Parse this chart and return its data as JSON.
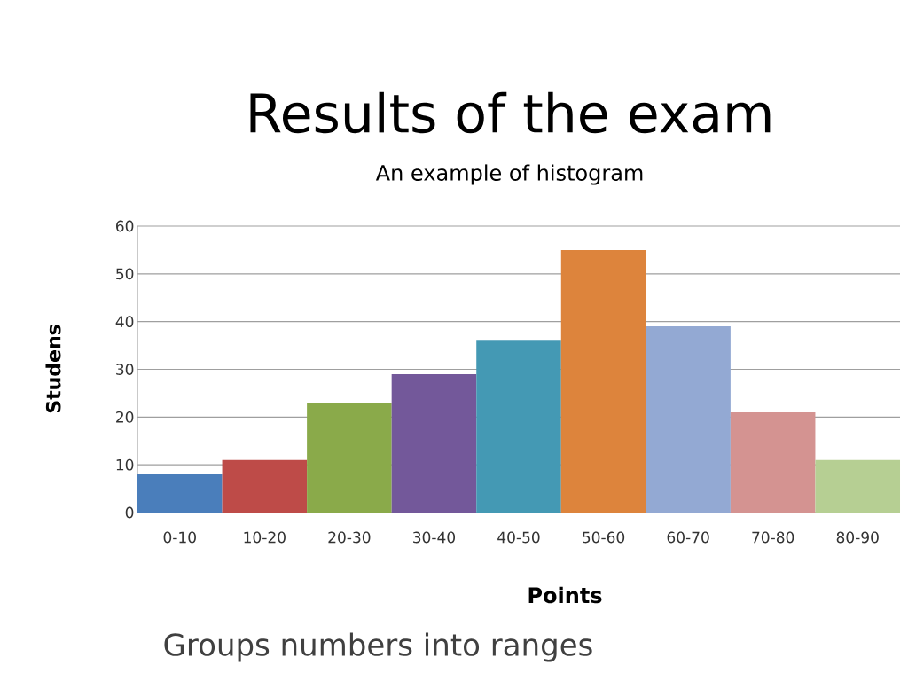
{
  "chart_data": {
    "type": "bar",
    "title": "Results of the exam",
    "subtitle": "An example of histogram",
    "xlabel": "Points",
    "ylabel": "Studens",
    "categories": [
      "0-10",
      "10-20",
      "20-30",
      "30-40",
      "40-50",
      "50-60",
      "60-70",
      "70-80",
      "80-90"
    ],
    "values": [
      8,
      11,
      23,
      29,
      36,
      55,
      39,
      21,
      11
    ],
    "colors": [
      "#4a7ebb",
      "#be4b48",
      "#8aaa4a",
      "#73589a",
      "#4499b4",
      "#dd843c",
      "#93a9d3",
      "#d49391",
      "#b6cf93"
    ],
    "ylim": [
      0,
      60
    ],
    "yticks": [
      0,
      10,
      20,
      30,
      40,
      50,
      60
    ],
    "grid": "y",
    "annotations": [
      "Groups numbers into ranges"
    ]
  }
}
